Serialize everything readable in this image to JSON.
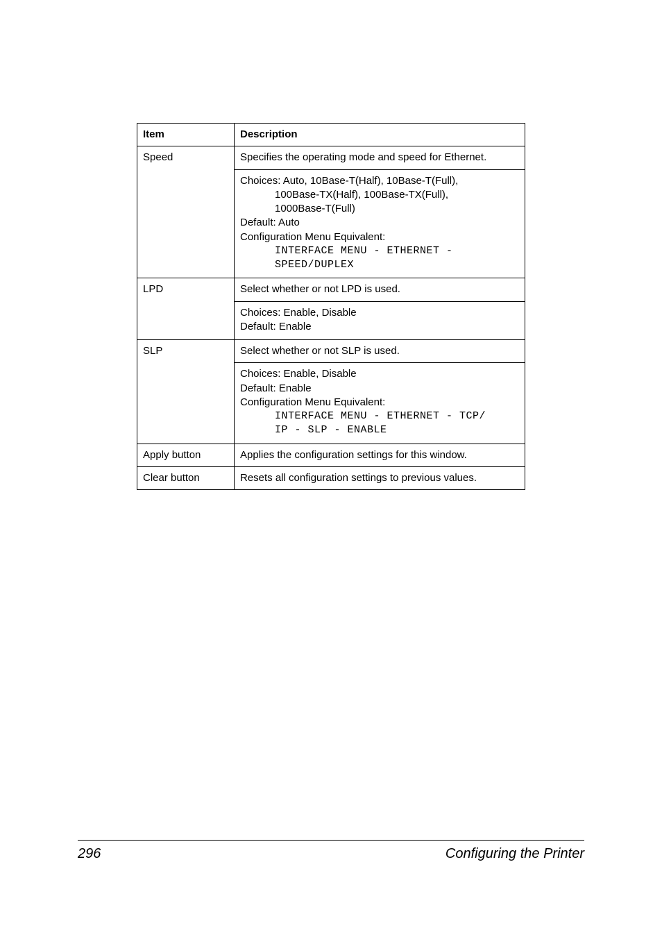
{
  "table": {
    "header": {
      "item": "Item",
      "description": "Description"
    },
    "rows": [
      {
        "item": "Speed",
        "desc_top": "Specifies the operating mode and speed for Ethernet.",
        "choices_line": "Choices: Auto, 10Base-T(Half), 10Base-T(Full),",
        "choices_line2": "100Base-TX(Half), 100Base-TX(Full),",
        "choices_line3": "1000Base-T(Full)",
        "default_line": "Default:  Auto",
        "cfg_line": "Configuration Menu Equivalent:",
        "mono1": "INTERFACE MENU - ETHERNET -",
        "mono2": "SPEED/DUPLEX"
      },
      {
        "item": "LPD",
        "desc_top": "Select whether or not LPD is used.",
        "choices_line": "Choices: Enable, Disable",
        "default_line": "Default:  Enable"
      },
      {
        "item": "SLP",
        "desc_top": "Select whether or not SLP is used.",
        "choices_line": "Choices: Enable, Disable",
        "default_line": "Default:  Enable",
        "cfg_line": "Configuration Menu Equivalent:",
        "mono1": "INTERFACE MENU - ETHERNET - TCP/",
        "mono2": "IP - SLP - ENABLE"
      },
      {
        "item": "Apply button",
        "desc_top": "Applies the configuration settings for this window."
      },
      {
        "item": "Clear button",
        "desc_top": "Resets all configuration settings to previous values."
      }
    ]
  },
  "footer": {
    "page": "296",
    "title": "Configuring the Printer"
  },
  "colors": {
    "text": "#000000",
    "background": "#ffffff",
    "border": "#000000"
  },
  "fonts": {
    "body_family": "Arial",
    "body_size_pt": 11,
    "mono_family": "Courier New",
    "footer_size_pt": 15,
    "footer_style": "italic"
  }
}
